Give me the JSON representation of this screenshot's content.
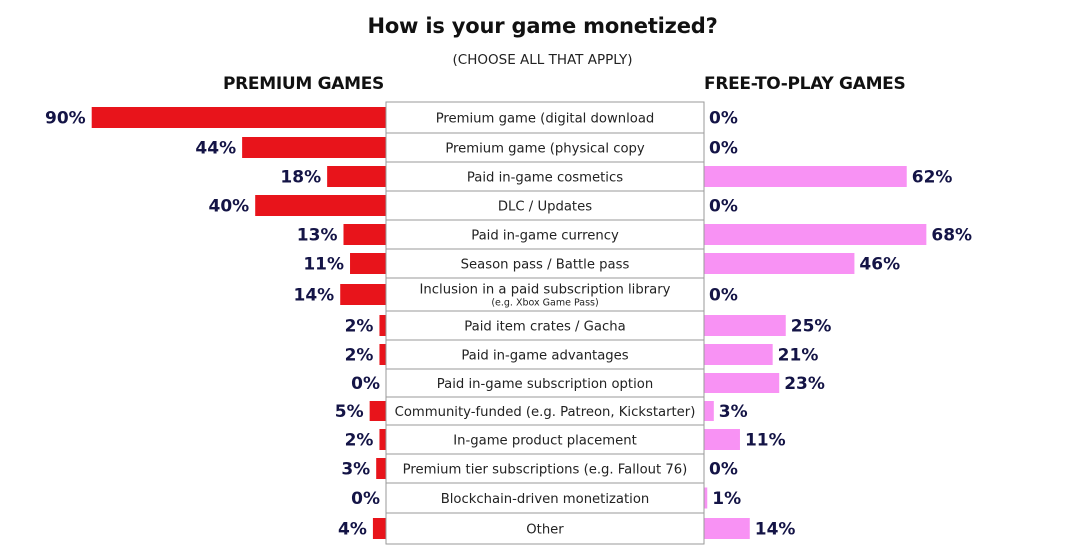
{
  "chart_data": {
    "type": "bar",
    "title": "How is your game monetized?",
    "subtitle": "(CHOOSE ALL THAT APPLY)",
    "colors": {
      "premium": "#e8141b",
      "f2p": "#f892f4",
      "value_text": "#141446"
    },
    "series": [
      {
        "name": "PREMIUM GAMES",
        "direction": "left",
        "values": [
          90,
          44,
          18,
          40,
          13,
          11,
          14,
          2,
          2,
          0,
          5,
          2,
          3,
          0,
          4
        ]
      },
      {
        "name": "FREE-TO-PLAY GAMES",
        "direction": "right",
        "values": [
          0,
          0,
          62,
          0,
          68,
          46,
          0,
          25,
          21,
          23,
          3,
          11,
          0,
          1,
          14
        ]
      }
    ],
    "categories": [
      {
        "label": "Premium game (digital download"
      },
      {
        "label": "Premium game (physical copy"
      },
      {
        "label": "Paid in-game cosmetics"
      },
      {
        "label": "DLC / Updates"
      },
      {
        "label": "Paid in-game currency"
      },
      {
        "label": "Season pass / Battle pass"
      },
      {
        "label": "Inclusion in a paid subscription library",
        "sublabel": "(e.g. Xbox Game Pass)"
      },
      {
        "label": "Paid item crates / Gacha"
      },
      {
        "label": "Paid in-game advantages"
      },
      {
        "label": "Paid in-game subscription option"
      },
      {
        "label": "Community-funded (e.g. Patreon, Kickstarter)"
      },
      {
        "label": "In-game product placement"
      },
      {
        "label": "Premium tier subscriptions (e.g. Fallout 76)"
      },
      {
        "label": "Blockchain-driven monetization"
      },
      {
        "label": "Other"
      }
    ],
    "unit": "%"
  }
}
